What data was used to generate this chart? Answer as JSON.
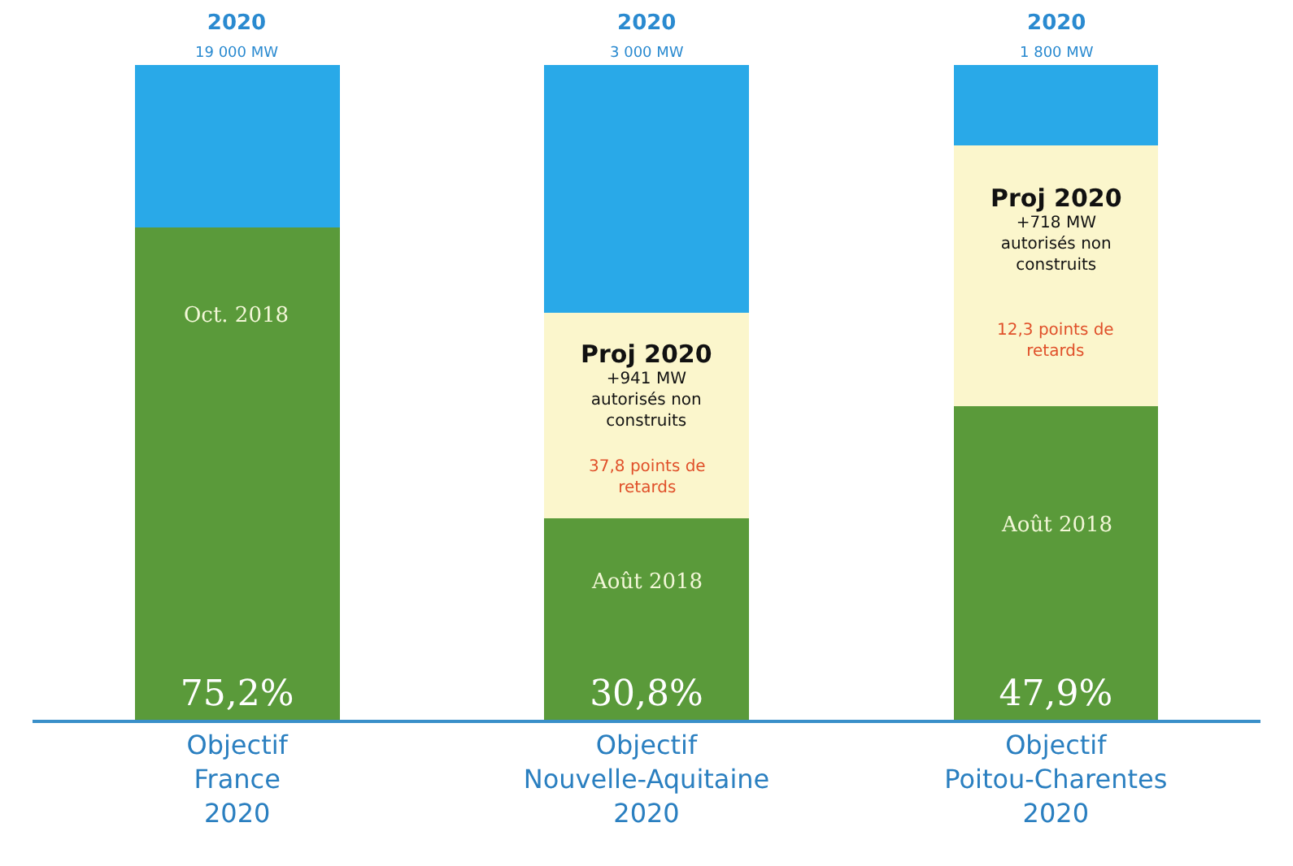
{
  "chart_data": {
    "type": "bar",
    "stacked": true,
    "categories": [
      "Objectif\nFrance\n2020",
      "Objectif\nNouvelle-Aquitaine\n2020",
      "Objectif\nPoitou-Charentes\n2020"
    ],
    "series": [
      {
        "color": "#5a9a3a",
        "values": [
          75.2,
          30.8,
          47.9
        ],
        "value_labels": [
          "75,2%",
          "30,8%",
          "47,9%"
        ]
      },
      {
        "color": "#fbf6cc",
        "values": [
          0,
          31.4,
          39.8
        ]
      },
      {
        "color": "#29a9e8",
        "values": [
          24.8,
          37.8,
          12.3
        ]
      }
    ],
    "totals": [
      "2020\n19 000 MW",
      "2020\n3 000 MW",
      "2020\n1 800 MW"
    ],
    "ylim": [
      0,
      100
    ],
    "annotations": [
      "Oct. 2018",
      "Août 2018",
      "Août 2018",
      "Proj 2020\n+941 MW\nautorisés non\nconstruits",
      "37,8 points de\nretards",
      "Proj 2020\n+718 MW\nautorisés non\nconstruits",
      "12,3 points de\nretards"
    ]
  }
}
